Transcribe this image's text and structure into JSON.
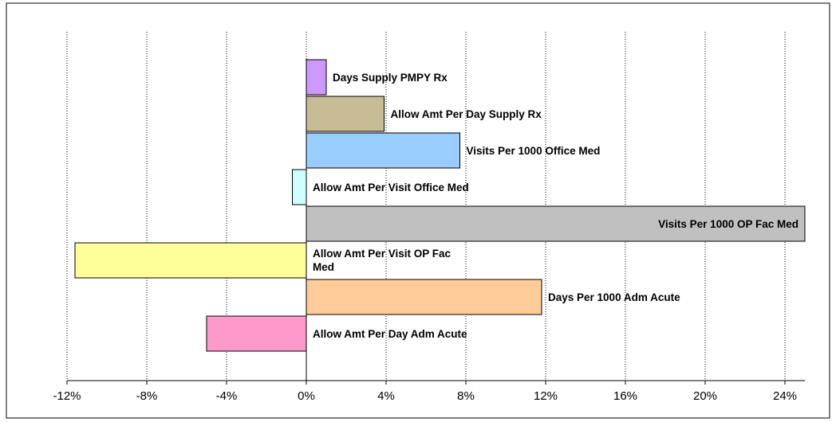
{
  "chart_data": {
    "type": "barh",
    "categories": [
      "Days Supply PMPY Rx",
      "Allow Amt Per Day Supply Rx",
      "Visits Per 1000 Office Med",
      "Allow Amt Per Visit Office Med",
      "Visits Per 1000 OP Fac Med",
      "Allow Amt Per Visit OP Fac Med",
      "Days Per 1000 Adm Acute",
      "Allow Amt Per Day Adm Acute"
    ],
    "values": [
      1.0,
      3.9,
      7.7,
      -0.7,
      25.0,
      -11.6,
      11.8,
      -5.0
    ],
    "colors": [
      "#cc99ff",
      "#c8bc96",
      "#99ccff",
      "#ccffff",
      "#c0c0c0",
      "#ffff99",
      "#ffcc99",
      "#ff99cc"
    ],
    "xlim": [
      -12,
      25
    ],
    "xticks": [
      {
        "value": -12,
        "label": "-12%"
      },
      {
        "value": -8,
        "label": "-8%"
      },
      {
        "value": -4,
        "label": "-4%"
      },
      {
        "value": 0,
        "label": "0%"
      },
      {
        "value": 4,
        "label": "4%"
      },
      {
        "value": 8,
        "label": "8%"
      },
      {
        "value": 12,
        "label": "12%"
      },
      {
        "value": 16,
        "label": "16%"
      },
      {
        "value": 20,
        "label": "20%"
      },
      {
        "value": 24,
        "label": "24%"
      }
    ],
    "grid": true
  }
}
